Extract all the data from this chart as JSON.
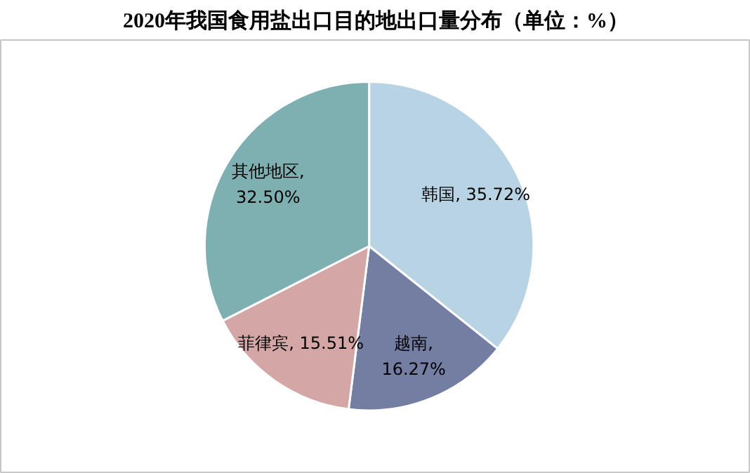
{
  "chart_data": {
    "type": "pie",
    "title": "2020年我国食用盐出口目的地出口量分布（单位：%）",
    "categories": [
      "韩国",
      "越南",
      "菲律宾",
      "其他地区"
    ],
    "values": [
      35.72,
      16.27,
      15.51,
      32.5
    ],
    "colors": [
      "#b8d4e4",
      "#737ea2",
      "#d4a6a6",
      "#7eb0b1"
    ],
    "value_labels": [
      ", 35.72%",
      ",\n16.27%",
      ", 15.51%",
      ",\n32.50%"
    ]
  }
}
